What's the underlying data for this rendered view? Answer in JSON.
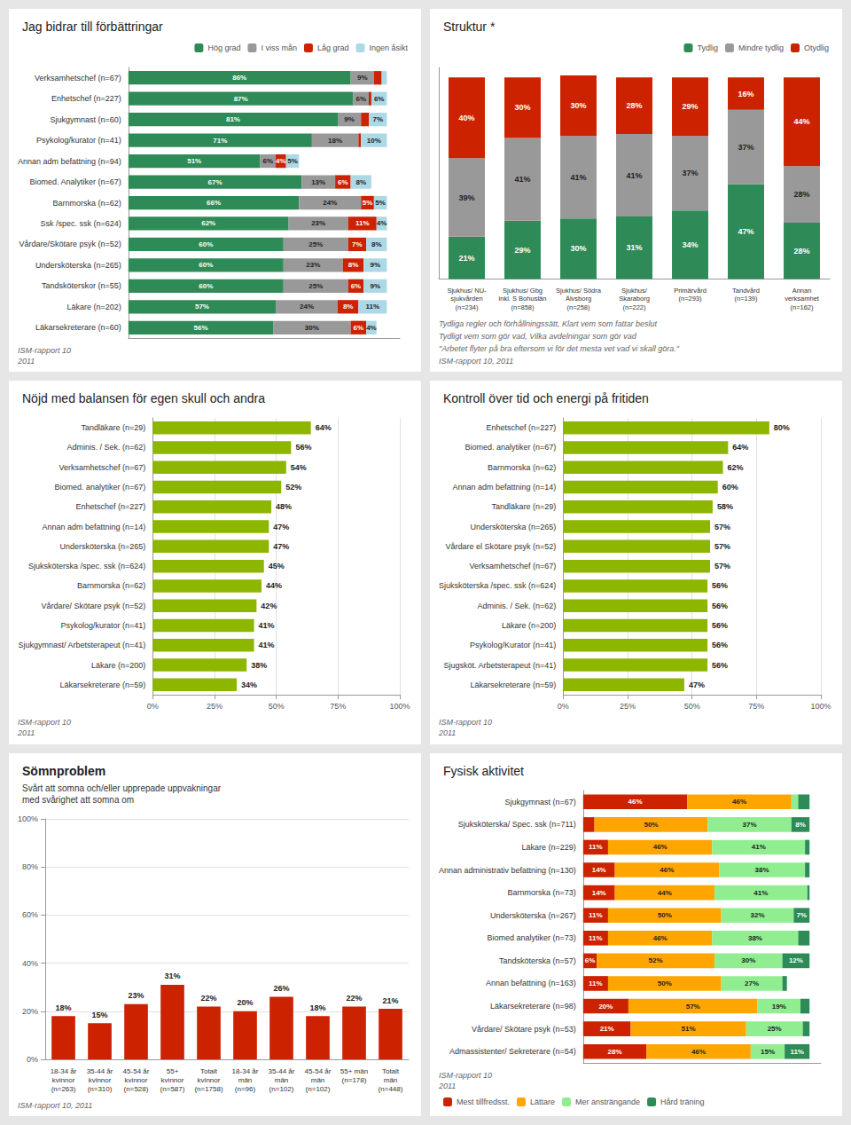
{
  "chart_data": [
    {
      "type": "bar",
      "orientation": "horizontal",
      "stacked": true,
      "title": "Jag bidrar till förbättringar",
      "categories": [
        "Verksamhetschef (n=67)",
        "Enhetschef (n=227)",
        "Sjukgymnast (n=60)",
        "Psykolog/kurator (n=41)",
        "Annan adm befattning (n=94)",
        "Biomed. Analytiker (n=67)",
        "Barnmorska (n=62)",
        "Ssk /spec. ssk (n=624)",
        "Vårdare/Skötare psyk (n=52)",
        "Undersköterska (n=265)",
        "Tandsköterskor (n=55)",
        "Läkare (n=202)",
        "Läkarsekreterare (n=60)"
      ],
      "series": [
        {
          "name": "Hög grad",
          "color": "#2e8b57",
          "values": [
            86,
            87,
            81,
            71,
            51,
            67,
            66,
            62,
            60,
            60,
            60,
            57,
            56
          ],
          "value_labels": [
            "86%",
            "87%",
            "81%",
            "71%",
            "51%",
            "67%",
            "66%",
            "62%",
            "60%",
            "60%",
            "60%",
            "57%",
            "56%"
          ]
        },
        {
          "name": "I viss mån",
          "color": "#999999",
          "values": [
            9,
            6,
            9,
            18,
            6,
            13,
            24,
            23,
            25,
            23,
            25,
            24,
            30
          ],
          "value_labels": [
            "9%",
            "6%",
            "9%",
            "18%",
            "6%",
            "13%",
            "24%",
            "23%",
            "25%",
            "23%",
            "25%",
            "24%",
            "30%"
          ]
        },
        {
          "name": "Låg grad",
          "color": "#cc2200",
          "values": [
            3,
            1,
            3,
            1,
            4,
            6,
            5,
            11,
            7,
            8,
            6,
            8,
            6
          ],
          "value_labels": [
            null,
            null,
            null,
            null,
            "4%",
            "6%",
            "5%",
            "11%",
            "7%",
            "8%",
            "6%",
            "8%",
            "6%"
          ]
        },
        {
          "name": "Ingen åsikt",
          "color": "#add8e6",
          "values": [
            2,
            6,
            7,
            10,
            5,
            8,
            5,
            4,
            8,
            9,
            9,
            11,
            4
          ],
          "value_labels": [
            null,
            "6%",
            "7%",
            "10%",
            "5%",
            "8%",
            "5%",
            "4%",
            "8%",
            "9%",
            "9%",
            "11%",
            "4%"
          ]
        }
      ],
      "xlim": [
        0,
        105
      ],
      "xticks": [],
      "grid": false,
      "legend": "top-right",
      "data_labels": true,
      "tick_labels": "y",
      "annotations": [
        "ISM-rapport 10\n2011"
      ]
    },
    {
      "type": "bar",
      "stacked": true,
      "title": "Struktur *",
      "categories": [
        "Sjukhus/ NU-\nsjukvården\n(n=234)",
        "Sjukhus/ Gbg\ninkl. S Bohuslän\n(n=858)",
        "Sjukhus/ Södra\nÄlvsborg\n(n=258)",
        "Sjukhus/\nSkaraborg\n(n=222)",
        "Primärvård\n(n=293)",
        "Tandvård\n(n=139)",
        "Annan\nverksamhet\n(n=162)"
      ],
      "series": [
        {
          "name": "Tydlig",
          "color": "#2e8b57",
          "values": [
            21,
            29,
            30,
            31,
            34,
            47,
            28
          ],
          "value_labels": [
            "21%",
            "29%",
            "30%",
            "31%",
            "34%",
            "47%",
            "28%"
          ]
        },
        {
          "name": "Mindre tydlig",
          "color": "#999999",
          "values": [
            39,
            41,
            41,
            41,
            37,
            37,
            28
          ],
          "value_labels": [
            "39%",
            "41%",
            "41%",
            "41%",
            "37%",
            "37%",
            "28%"
          ]
        },
        {
          "name": "Otydlig",
          "color": "#cc2200",
          "values": [
            40,
            30,
            30,
            28,
            29,
            16,
            44
          ],
          "value_labels": [
            "40%",
            "30%",
            "30%",
            "28%",
            "29%",
            "16%",
            "44%"
          ]
        }
      ],
      "ylim": [
        0,
        105
      ],
      "yticks": [],
      "grid": false,
      "legend": "top-right",
      "data_labels": true,
      "tick_labels": "x",
      "annotations": [
        "Tydliga regler och förhållningssätt, Klart vem som fattar beslut",
        "Tydligt vem som gör vad, Vilka avdelningar som gör vad",
        "\"Arbetet flyter på bra eftersom vi för det mesta vet vad vi skall göra.\"",
        "ISM-rapport 10, 2011"
      ]
    },
    {
      "type": "bar",
      "orientation": "horizontal",
      "title": "Nöjd med balansen för egen skull och andra",
      "categories": [
        "Tandläkare (n=29)",
        "Adminis. / Sek. (n=62)",
        "Verksamhetschef (n=67)",
        "Biomed. analytiker (n=67)",
        "Enhetschef (n=227)",
        "Annan adm befattning (n=14)",
        "Undersköterska (n=265)",
        "Sjuksköterska /spec. ssk (n=624)",
        "Barnmorska (n=62)",
        "Vårdare/ Skötare psyk (n=52)",
        "Psykolog/kurator (n=41)",
        "Sjukgymnast/ Arbetsterapeut (n=41)",
        "Läkare (n=200)",
        "Läkarsekreterare (n=59)"
      ],
      "values": [
        64,
        56,
        54,
        52,
        48,
        47,
        47,
        45,
        44,
        42,
        41,
        41,
        38,
        34
      ],
      "value_labels": [
        "64%",
        "56%",
        "54%",
        "52%",
        "48%",
        "47%",
        "47%",
        "45%",
        "44%",
        "42%",
        "41%",
        "41%",
        "38%",
        "34%"
      ],
      "color": "#8db600",
      "xlim": [
        0,
        100
      ],
      "xticks": [
        {
          "value": 0,
          "label": "0%"
        },
        {
          "value": 25,
          "label": "25%"
        },
        {
          "value": 50,
          "label": "50%"
        },
        {
          "value": 75,
          "label": "75%"
        },
        {
          "value": 100,
          "label": "100%"
        }
      ],
      "grid": true,
      "data_labels": true,
      "annotations": [
        "ISM-rapport 10\n2011"
      ]
    },
    {
      "type": "bar",
      "orientation": "horizontal",
      "title": "Kontroll över tid och energi på fritiden",
      "categories": [
        "Enhetschef (n=227)",
        "Biomed. analytiker (n=67)",
        "Barnmorska (n=62)",
        "Annan adm befattning (n=14)",
        "Tandläkare (n=29)",
        "Undersköterska (n=265)",
        "Vårdare el Skötare psyk (n=52)",
        "Verksamhetschef (n=67)",
        "Sjuksköterska /spec. ssk (n=624)",
        "Adminis. / Sek. (n=62)",
        "Läkare (n=200)",
        "Psykolog/Kurator (n=41)",
        "Sjugsköt. Arbetsterapeut (n=41)",
        "Läkarsekreterare (n=59)"
      ],
      "values": [
        80,
        64,
        62,
        60,
        58,
        57,
        57,
        57,
        56,
        56,
        56,
        56,
        56,
        47
      ],
      "value_labels": [
        "80%",
        "64%",
        "62%",
        "60%",
        "58%",
        "57%",
        "57%",
        "57%",
        "56%",
        "56%",
        "56%",
        "56%",
        "56%",
        "47%"
      ],
      "color": "#8db600",
      "xlim": [
        0,
        100
      ],
      "xticks": [
        {
          "value": 0,
          "label": "0%"
        },
        {
          "value": 25,
          "label": "25%"
        },
        {
          "value": 50,
          "label": "50%"
        },
        {
          "value": 75,
          "label": "75%"
        },
        {
          "value": 100,
          "label": "100%"
        }
      ],
      "grid": true,
      "data_labels": true,
      "annotations": [
        "ISM-rapport 10\n2011"
      ]
    },
    {
      "type": "bar",
      "title": "Sömnproblem",
      "subtitle": "Svårt att somna och/eller upprepade uppvakningar\nmed svårighet att somna om",
      "categories": [
        "18-34 år\nkvinnor\n(n=263)",
        "35-44 år\nkvinnor\n(n=310)",
        "45-54 år\nkvinnor\n(n=528)",
        "55+\nkvinnor\n(n=587)",
        "Totalt\nkvinnor\n(n=1758)",
        "18-34 år\nmän\n(n=96)",
        "35-44 år\nmän\n(n=102)",
        "45-54 år\nmän\n(n=102)",
        "55+ män\n(n=178)",
        "Totalt\nmän\n(n=448)"
      ],
      "values": [
        18,
        15,
        23,
        31,
        22,
        20,
        26,
        18,
        22,
        21
      ],
      "value_labels": [
        "18%",
        "15%",
        "23%",
        "31%",
        "22%",
        "20%",
        "26%",
        "18%",
        "22%",
        "21%"
      ],
      "colors": [
        "#cc2200",
        "#cc2200",
        "#cc2200",
        "#cc2200",
        "#cc2200",
        "#cc2200",
        "#cc2200",
        "#cc2200",
        "#cc2200",
        "#cc2200"
      ],
      "ylim": [
        0,
        100
      ],
      "yticks": [
        {
          "value": 0,
          "label": "0%"
        },
        {
          "value": 20,
          "label": "20%"
        },
        {
          "value": 40,
          "label": "40%"
        },
        {
          "value": 60,
          "label": "60%"
        },
        {
          "value": 80,
          "label": "80%"
        },
        {
          "value": 100,
          "label": "100%"
        }
      ],
      "grid": true,
      "data_labels": true,
      "annotations": [
        "ISM-rapport 10, 2011"
      ]
    },
    {
      "type": "bar",
      "orientation": "horizontal",
      "stacked": true,
      "title": "Fysisk aktivitet",
      "categories": [
        "Sjukgymnast (n=67)",
        "Sjuksköterska/ Spec. ssk (n=711)",
        "Läkare (n=229)",
        "Annan administrativ befattning (n=130)",
        "Barnmorska (n=73)",
        "Undersköterska (n=267)",
        "Biomed analytiker (n=73)",
        "Tandsköterska (n=57)",
        "Annan befattning (n=163)",
        "Läkarsekreterare (n=98)",
        "Vårdare/ Skötare psyk (n=53)",
        "Admassistenter/ Sekreterare (n=54)"
      ],
      "series": [
        {
          "name": "Mest tillfredsst.",
          "color": "#cc2200",
          "values": [
            46,
            5,
            11,
            14,
            14,
            11,
            11,
            6,
            11,
            20,
            21,
            28
          ],
          "value_labels": [
            "46%",
            null,
            "11%",
            "14%",
            "14%",
            "11%",
            "11%",
            "6%",
            "11%",
            "20%",
            "21%",
            "28%"
          ]
        },
        {
          "name": "Lättare",
          "color": "#ffa500",
          "values": [
            46,
            50,
            46,
            46,
            44,
            50,
            46,
            52,
            50,
            57,
            51,
            46
          ],
          "value_labels": [
            "46%",
            "50%",
            "46%",
            "46%",
            "44%",
            "50%",
            "46%",
            "52%",
            "50%",
            "57%",
            "51%",
            "46%"
          ]
        },
        {
          "name": "Mer ansträngande",
          "color": "#90ee90",
          "values": [
            3,
            37,
            41,
            38,
            41,
            32,
            38,
            30,
            27,
            19,
            25,
            15
          ],
          "value_labels": [
            null,
            "37%",
            "41%",
            "38%",
            "41%",
            "32%",
            "38%",
            "30%",
            "27%",
            "19%",
            "25%",
            "15%"
          ]
        },
        {
          "name": "Hård träning",
          "color": "#2e8b57",
          "values": [
            5,
            8,
            2,
            2,
            1,
            7,
            5,
            12,
            2,
            4,
            3,
            11
          ],
          "value_labels": [
            null,
            "8%",
            null,
            null,
            null,
            "7%",
            null,
            "12%",
            null,
            null,
            null,
            "11%"
          ]
        }
      ],
      "xlim": [
        0,
        105
      ],
      "xticks": [],
      "grid": false,
      "legend": "bottom-left",
      "data_labels": true,
      "tick_labels": "y",
      "annotations": [
        "ISM-rapport 10\n2011"
      ]
    }
  ]
}
